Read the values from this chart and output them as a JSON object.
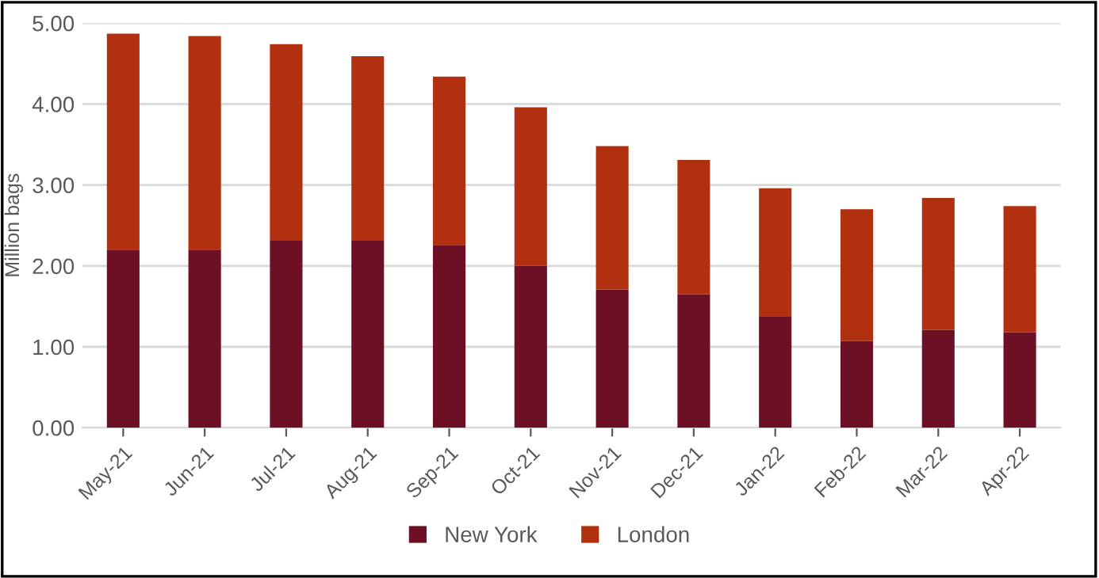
{
  "chart_data": {
    "type": "bar",
    "stacked": true,
    "ylabel": "Million bags",
    "categories": [
      "May-21",
      "Jun-21",
      "Jul-21",
      "Aug-21",
      "Sep-21",
      "Oct-21",
      "Nov-21",
      "Dec-21",
      "Jan-22",
      "Feb-22",
      "Mar-22",
      "Apr-22"
    ],
    "series": [
      {
        "name": "New York",
        "color": "#6d0f25",
        "values": [
          2.2,
          2.2,
          2.31,
          2.31,
          2.26,
          2.0,
          1.71,
          1.65,
          1.38,
          1.07,
          1.21,
          1.18
        ]
      },
      {
        "name": "London",
        "color": "#b0300f",
        "values": [
          2.67,
          2.64,
          2.43,
          2.28,
          2.08,
          1.96,
          1.77,
          1.66,
          1.58,
          1.63,
          1.63,
          1.56
        ]
      }
    ],
    "ylim": [
      0,
      5
    ],
    "yticks": [
      {
        "value": 0,
        "label": "0.00"
      },
      {
        "value": 1,
        "label": "1.00"
      },
      {
        "value": 2,
        "label": "2.00"
      },
      {
        "value": 3,
        "label": "3.00"
      },
      {
        "value": 4,
        "label": "4.00"
      },
      {
        "value": 5,
        "label": "5.00"
      }
    ],
    "grid": "y",
    "legend": "bottom"
  }
}
